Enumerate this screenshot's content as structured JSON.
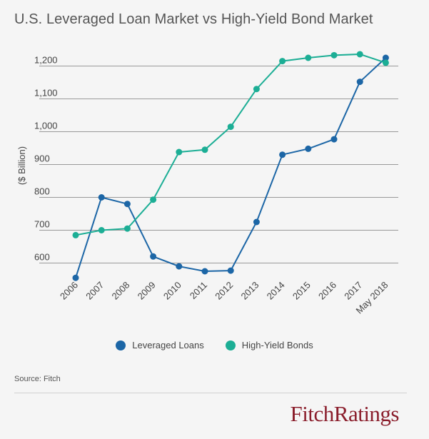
{
  "title": "U.S. Leveraged Loan Market vs High-Yield Bond Market",
  "source": "Source: Fitch",
  "logo": "FitchRatings",
  "colors": {
    "leveraged_loans": "#1c66a6",
    "high_yield_bonds": "#1cae95",
    "grid": "#999999",
    "axis_text": "#444444"
  },
  "chart_data": {
    "type": "line",
    "title": "U.S. Leveraged Loan Market vs High-Yield Bond Market",
    "xlabel": "",
    "ylabel": "($ Billion)",
    "categories": [
      "2006",
      "2007",
      "2008",
      "2009",
      "2010",
      "2011",
      "2012",
      "2013",
      "2014",
      "2015",
      "2016",
      "2017",
      "May 2018"
    ],
    "yticks": [
      600,
      700,
      800,
      900,
      "1,000",
      "1,100",
      "1,200"
    ],
    "ylim": [
      550,
      1250
    ],
    "grid": true,
    "legend_position": "bottom",
    "series": [
      {
        "name": "Leveraged Loans",
        "values": [
          555,
          800,
          780,
          620,
          590,
          575,
          577,
          725,
          930,
          948,
          977,
          1152,
          1225
        ]
      },
      {
        "name": "High-Yield Bonds",
        "values": [
          685,
          700,
          705,
          793,
          938,
          945,
          1015,
          1130,
          1215,
          1225,
          1233,
          1236,
          1210
        ]
      }
    ]
  }
}
